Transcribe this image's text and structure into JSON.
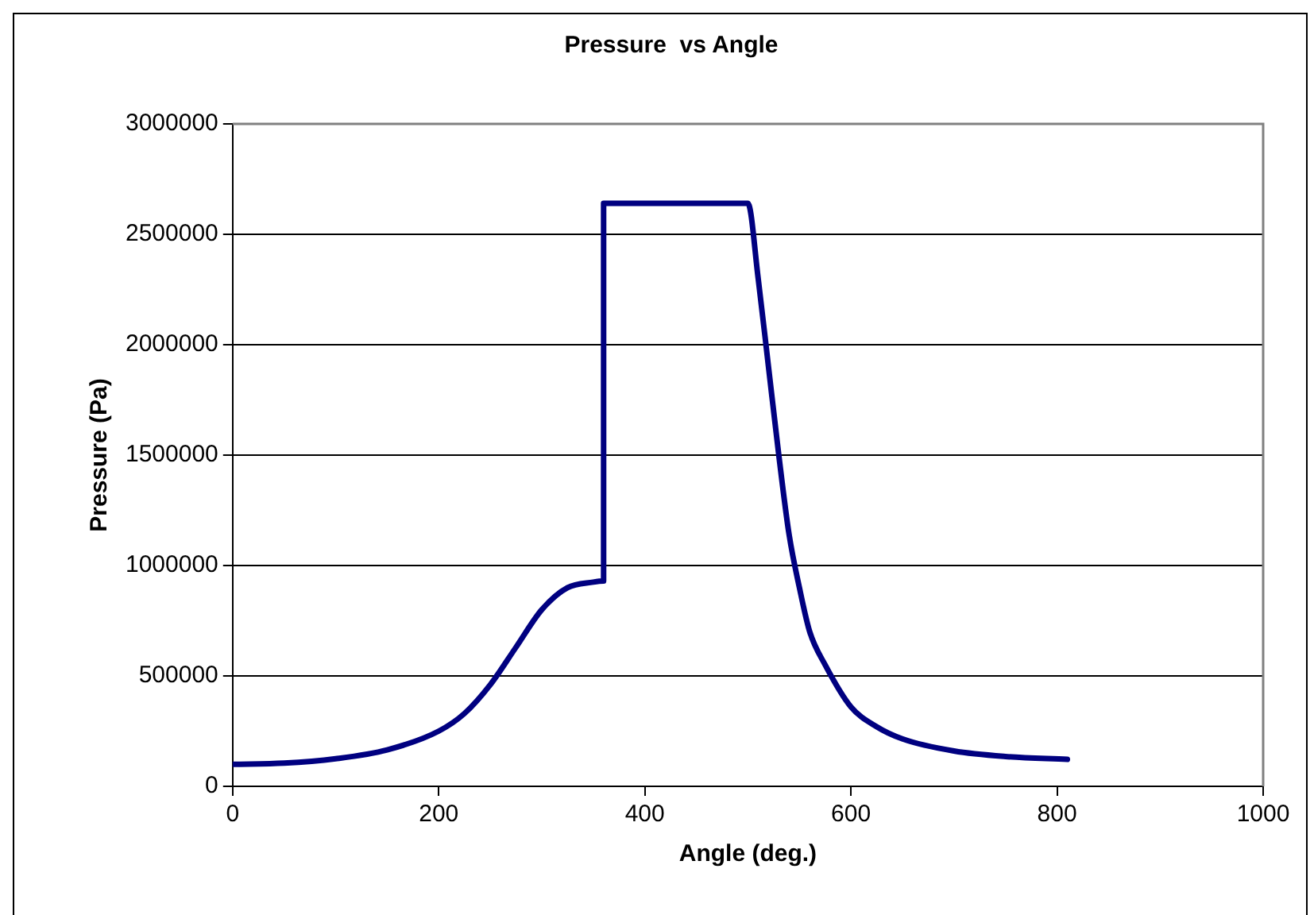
{
  "chart_data": {
    "type": "line",
    "title": "Pressure  vs Angle",
    "xlabel": "Angle (deg.)",
    "ylabel": "Pressure (Pa)",
    "x": [
      0,
      50,
      100,
      150,
      200,
      225,
      250,
      275,
      300,
      325,
      350,
      360,
      360,
      400,
      450,
      500,
      510,
      520,
      530,
      540,
      550,
      560,
      575,
      600,
      625,
      650,
      700,
      750,
      810
    ],
    "series": [
      {
        "color": "#000080",
        "values": [
          100000,
          105000,
          125000,
          165000,
          250000,
          330000,
          460000,
          630000,
          800000,
          900000,
          925000,
          930000,
          2640000,
          2640000,
          2640000,
          2640000,
          2300000,
          1900000,
          1500000,
          1140000,
          900000,
          700000,
          550000,
          360000,
          270000,
          215000,
          160000,
          135000,
          122000
        ]
      }
    ],
    "xlim": [
      0,
      1000
    ],
    "xticks": [
      0,
      200,
      400,
      600,
      800,
      1000
    ],
    "ylim": [
      0,
      3000000
    ],
    "yticks": [
      0,
      500000,
      1000000,
      1500000,
      2000000,
      2500000,
      3000000
    ],
    "grid": "y",
    "legend": false,
    "marker": "none",
    "line_style": "solid"
  }
}
